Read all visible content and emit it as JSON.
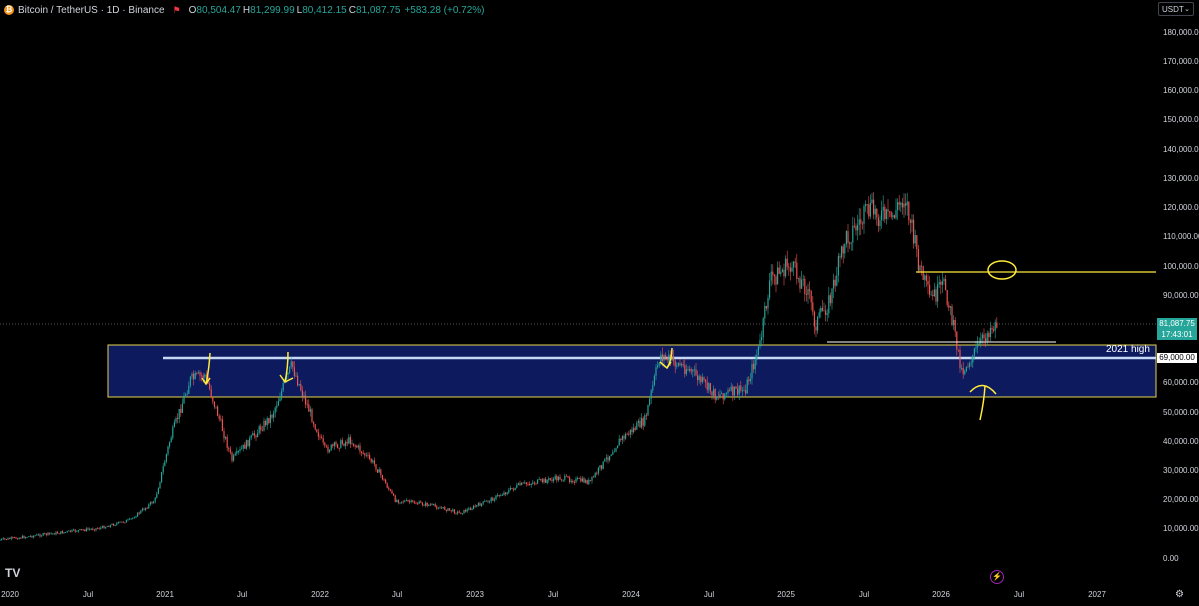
{
  "header": {
    "coin_glyph": "₿",
    "symbol": "Bitcoin / TetherUS · 1D · Binance",
    "o_label": "O",
    "o_value": "80,504.47",
    "h_label": "H",
    "h_value": "81,299.99",
    "l_label": "L",
    "l_value": "80,412.15",
    "c_label": "C",
    "c_value": "81,087.75",
    "change": "+583.28 (+0.72%)"
  },
  "currency_button": "USDT",
  "price_tag": {
    "price": "81,087.75",
    "countdown": "17:43:01"
  },
  "level_tag": "69,000.00",
  "annotation_text": "2021 high",
  "y_ticks": [
    "180,000.00",
    "170,000.00",
    "160,000.00",
    "150,000.00",
    "140,000.00",
    "130,000.00",
    "120,000.00",
    "110,000.00",
    "100,000.00",
    "90,000.00",
    "60,000.00",
    "50,000.00",
    "40,000.00",
    "30,000.00",
    "20,000.00",
    "10,000.00",
    "0.00"
  ],
  "x_ticks": [
    "2020",
    "Jul",
    "2021",
    "Jul",
    "2022",
    "Jul",
    "2023",
    "Jul",
    "2024",
    "Jul",
    "2025",
    "Jul",
    "2026",
    "Jul",
    "2027"
  ],
  "colors": {
    "up": "#26a69a",
    "down": "#ef5350",
    "zone": "#0d1b5e",
    "annotation": "#ffeb3b"
  },
  "icons": {
    "logo": "tradingview-logo-icon",
    "bolt": "lightning-icon",
    "settings": "gear-icon"
  },
  "logo_text": "TV",
  "bolt_glyph": "⚡",
  "gear_glyph": "⚙"
}
